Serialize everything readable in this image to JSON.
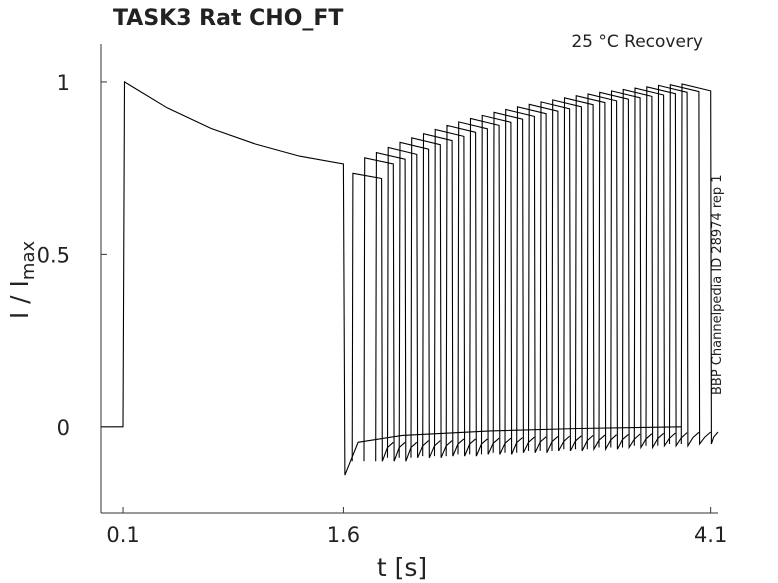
{
  "chart_data": {
    "type": "line",
    "title": "TASK3  Rat  CHO_FT",
    "annotation": "25 °C  Recovery",
    "side_label": "BBP Channelpedia ID 28974 rep 1",
    "xlabel": "t [s]",
    "ylabel": {
      "main": "I / I",
      "sub": "max"
    },
    "xlim": [
      -0.05,
      4.15
    ],
    "ylim": [
      -0.25,
      1.11
    ],
    "x_ticks": [
      {
        "value": 0.1,
        "label": "0.1"
      },
      {
        "value": 1.6,
        "label": "1.6"
      },
      {
        "value": 4.1,
        "label": "4.1"
      }
    ],
    "y_ticks": [
      {
        "value": 0,
        "label": "0"
      },
      {
        "value": 0.5,
        "label": "0.5"
      },
      {
        "value": 1,
        "label": "1"
      }
    ],
    "protocol": {
      "pulse1_on": 0.1,
      "pulse1_off": 1.6,
      "pulse2_width": 0.2,
      "pulse2_onsets": [
        1.66,
        1.74,
        1.82,
        1.9,
        1.98,
        2.06,
        2.14,
        2.22,
        2.3,
        2.38,
        2.46,
        2.54,
        2.62,
        2.7,
        2.78,
        2.86,
        2.94,
        3.02,
        3.1,
        3.18,
        3.26,
        3.34,
        3.42,
        3.5,
        3.58,
        3.66,
        3.74,
        3.82,
        3.9
      ]
    },
    "series": [
      {
        "points": [
          [
            -0.05,
            0.0
          ],
          [
            0.1,
            0.0
          ],
          [
            0.11,
            1.0
          ],
          [
            0.4,
            0.925
          ],
          [
            0.7,
            0.865
          ],
          [
            1.0,
            0.82
          ],
          [
            1.3,
            0.785
          ],
          [
            1.6,
            0.762
          ],
          [
            1.61,
            -0.14
          ],
          [
            1.7,
            -0.045
          ],
          [
            2.0,
            -0.025
          ],
          [
            2.6,
            -0.012
          ],
          [
            3.2,
            -0.005
          ],
          [
            3.9,
            0.0
          ]
        ]
      },
      {
        "points": [
          [
            1.66,
            -0.1
          ],
          [
            1.665,
            0.735
          ],
          [
            1.86,
            0.72
          ],
          [
            1.865,
            -0.1
          ],
          [
            1.9,
            -0.06
          ],
          [
            1.94,
            -0.045
          ]
        ]
      },
      {
        "points": [
          [
            1.74,
            -0.1
          ],
          [
            1.745,
            0.78
          ],
          [
            1.94,
            0.762
          ],
          [
            1.945,
            -0.1
          ],
          [
            1.98,
            -0.06
          ],
          [
            2.02,
            -0.045
          ]
        ]
      },
      {
        "points": [
          [
            1.82,
            -0.1
          ],
          [
            1.825,
            0.795
          ],
          [
            2.02,
            0.776
          ],
          [
            2.025,
            -0.1
          ],
          [
            2.06,
            -0.06
          ],
          [
            2.1,
            -0.045
          ]
        ]
      },
      {
        "points": [
          [
            1.9,
            -0.09
          ],
          [
            1.905,
            0.81
          ],
          [
            2.1,
            0.79
          ],
          [
            2.105,
            -0.09
          ],
          [
            2.14,
            -0.055
          ],
          [
            2.18,
            -0.04
          ]
        ]
      },
      {
        "points": [
          [
            1.98,
            -0.09
          ],
          [
            1.985,
            0.825
          ],
          [
            2.18,
            0.805
          ],
          [
            2.185,
            -0.09
          ],
          [
            2.22,
            -0.055
          ],
          [
            2.26,
            -0.04
          ]
        ]
      },
      {
        "points": [
          [
            2.06,
            -0.09
          ],
          [
            2.065,
            0.838
          ],
          [
            2.26,
            0.818
          ],
          [
            2.265,
            -0.09
          ],
          [
            2.3,
            -0.055
          ],
          [
            2.34,
            -0.04
          ]
        ]
      },
      {
        "points": [
          [
            2.14,
            -0.085
          ],
          [
            2.145,
            0.85
          ],
          [
            2.34,
            0.83
          ],
          [
            2.345,
            -0.085
          ],
          [
            2.38,
            -0.05
          ],
          [
            2.42,
            -0.035
          ]
        ]
      },
      {
        "points": [
          [
            2.22,
            -0.085
          ],
          [
            2.225,
            0.862
          ],
          [
            2.42,
            0.842
          ],
          [
            2.425,
            -0.085
          ],
          [
            2.46,
            -0.05
          ],
          [
            2.5,
            -0.035
          ]
        ]
      },
      {
        "points": [
          [
            2.3,
            -0.085
          ],
          [
            2.305,
            0.874
          ],
          [
            2.5,
            0.854
          ],
          [
            2.505,
            -0.085
          ],
          [
            2.54,
            -0.05
          ],
          [
            2.58,
            -0.035
          ]
        ]
      },
      {
        "points": [
          [
            2.38,
            -0.08
          ],
          [
            2.385,
            0.884
          ],
          [
            2.58,
            0.864
          ],
          [
            2.585,
            -0.08
          ],
          [
            2.62,
            -0.048
          ],
          [
            2.66,
            -0.033
          ]
        ]
      },
      {
        "points": [
          [
            2.46,
            -0.08
          ],
          [
            2.465,
            0.894
          ],
          [
            2.66,
            0.874
          ],
          [
            2.665,
            -0.08
          ],
          [
            2.7,
            -0.048
          ],
          [
            2.74,
            -0.033
          ]
        ]
      },
      {
        "points": [
          [
            2.54,
            -0.08
          ],
          [
            2.545,
            0.903
          ],
          [
            2.74,
            0.883
          ],
          [
            2.745,
            -0.08
          ],
          [
            2.78,
            -0.046
          ],
          [
            2.82,
            -0.031
          ]
        ]
      },
      {
        "points": [
          [
            2.62,
            -0.075
          ],
          [
            2.625,
            0.912
          ],
          [
            2.82,
            0.892
          ],
          [
            2.825,
            -0.075
          ],
          [
            2.86,
            -0.045
          ],
          [
            2.9,
            -0.03
          ]
        ]
      },
      {
        "points": [
          [
            2.7,
            -0.075
          ],
          [
            2.705,
            0.92
          ],
          [
            2.9,
            0.9
          ],
          [
            2.905,
            -0.075
          ],
          [
            2.94,
            -0.044
          ],
          [
            2.98,
            -0.029
          ]
        ]
      },
      {
        "points": [
          [
            2.78,
            -0.075
          ],
          [
            2.785,
            0.928
          ],
          [
            2.98,
            0.908
          ],
          [
            2.985,
            -0.075
          ],
          [
            3.02,
            -0.043
          ],
          [
            3.06,
            -0.028
          ]
        ]
      },
      {
        "points": [
          [
            2.86,
            -0.07
          ],
          [
            2.865,
            0.935
          ],
          [
            3.06,
            0.915
          ],
          [
            3.065,
            -0.07
          ],
          [
            3.1,
            -0.042
          ],
          [
            3.14,
            -0.027
          ]
        ]
      },
      {
        "points": [
          [
            2.94,
            -0.07
          ],
          [
            2.945,
            0.942
          ],
          [
            3.14,
            0.922
          ],
          [
            3.145,
            -0.07
          ],
          [
            3.18,
            -0.041
          ],
          [
            3.22,
            -0.026
          ]
        ]
      },
      {
        "points": [
          [
            3.02,
            -0.07
          ],
          [
            3.025,
            0.948
          ],
          [
            3.22,
            0.928
          ],
          [
            3.225,
            -0.07
          ],
          [
            3.26,
            -0.04
          ],
          [
            3.3,
            -0.025
          ]
        ]
      },
      {
        "points": [
          [
            3.1,
            -0.065
          ],
          [
            3.105,
            0.954
          ],
          [
            3.3,
            0.934
          ],
          [
            3.305,
            -0.065
          ],
          [
            3.34,
            -0.039
          ],
          [
            3.38,
            -0.024
          ]
        ]
      },
      {
        "points": [
          [
            3.18,
            -0.065
          ],
          [
            3.185,
            0.96
          ],
          [
            3.38,
            0.94
          ],
          [
            3.385,
            -0.065
          ],
          [
            3.42,
            -0.038
          ],
          [
            3.46,
            -0.023
          ]
        ]
      },
      {
        "points": [
          [
            3.26,
            -0.065
          ],
          [
            3.265,
            0.965
          ],
          [
            3.46,
            0.945
          ],
          [
            3.465,
            -0.065
          ],
          [
            3.5,
            -0.037
          ],
          [
            3.54,
            -0.022
          ]
        ]
      },
      {
        "points": [
          [
            3.34,
            -0.06
          ],
          [
            3.345,
            0.97
          ],
          [
            3.54,
            0.95
          ],
          [
            3.545,
            -0.06
          ],
          [
            3.58,
            -0.036
          ],
          [
            3.62,
            -0.021
          ]
        ]
      },
      {
        "points": [
          [
            3.42,
            -0.06
          ],
          [
            3.425,
            0.974
          ],
          [
            3.62,
            0.954
          ],
          [
            3.625,
            -0.06
          ],
          [
            3.66,
            -0.035
          ],
          [
            3.7,
            -0.02
          ]
        ]
      },
      {
        "points": [
          [
            3.5,
            -0.06
          ],
          [
            3.505,
            0.978
          ],
          [
            3.7,
            0.958
          ],
          [
            3.705,
            -0.06
          ],
          [
            3.74,
            -0.034
          ],
          [
            3.78,
            -0.019
          ]
        ]
      },
      {
        "points": [
          [
            3.58,
            -0.055
          ],
          [
            3.585,
            0.982
          ],
          [
            3.78,
            0.962
          ],
          [
            3.785,
            -0.055
          ],
          [
            3.82,
            -0.033
          ],
          [
            3.86,
            -0.018
          ]
        ]
      },
      {
        "points": [
          [
            3.66,
            -0.055
          ],
          [
            3.665,
            0.986
          ],
          [
            3.86,
            0.966
          ],
          [
            3.865,
            -0.055
          ],
          [
            3.9,
            -0.032
          ],
          [
            3.94,
            -0.017
          ]
        ]
      },
      {
        "points": [
          [
            3.74,
            -0.055
          ],
          [
            3.745,
            0.99
          ],
          [
            3.94,
            0.97
          ],
          [
            3.945,
            -0.055
          ],
          [
            3.98,
            -0.031
          ],
          [
            4.02,
            -0.016
          ]
        ]
      },
      {
        "points": [
          [
            3.82,
            -0.05
          ],
          [
            3.825,
            0.992
          ],
          [
            4.02,
            0.972
          ],
          [
            4.025,
            -0.05
          ],
          [
            4.06,
            -0.03
          ],
          [
            4.1,
            -0.015
          ]
        ]
      },
      {
        "points": [
          [
            3.9,
            -0.05
          ],
          [
            3.905,
            0.994
          ],
          [
            4.1,
            0.974
          ],
          [
            4.105,
            -0.05
          ],
          [
            4.12,
            -0.03
          ],
          [
            4.15,
            -0.015
          ]
        ]
      }
    ]
  }
}
